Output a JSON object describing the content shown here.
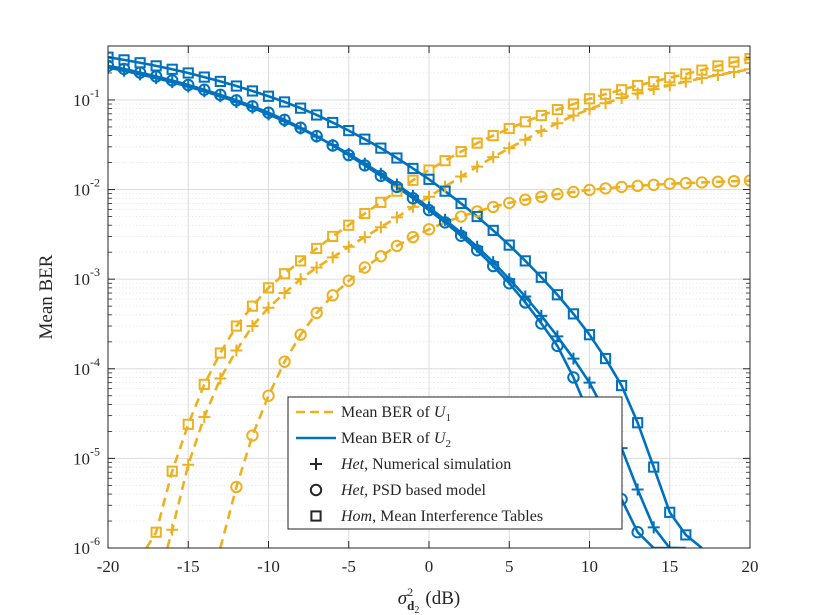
{
  "chart_data": {
    "type": "line",
    "xlabel": {
      "symbol": "σ",
      "superscript": "2",
      "subscript_main": "d",
      "subscript_sub": "2",
      "unit": "(dB)"
    },
    "ylabel": "Mean BER",
    "xlim": [
      -20,
      20
    ],
    "ylim": [
      1e-06,
      0.4
    ],
    "yscale": "log",
    "grid": true,
    "minor_grid": true,
    "legend_position": "bottom-center",
    "x_ticks": [
      -20,
      -15,
      -10,
      -5,
      0,
      5,
      10,
      15,
      20
    ],
    "x_tick_labels": [
      "-20",
      "-15",
      "-10",
      "-5",
      "0",
      "5",
      "10",
      "15",
      "20"
    ],
    "y_ticks": [
      {
        "value": 1e-06,
        "base": "10",
        "exp": "-6"
      },
      {
        "value": 1e-05,
        "base": "10",
        "exp": "-5"
      },
      {
        "value": 0.0001,
        "base": "10",
        "exp": "-4"
      },
      {
        "value": 0.001,
        "base": "10",
        "exp": "-3"
      },
      {
        "value": 0.01,
        "base": "10",
        "exp": "-2"
      },
      {
        "value": 0.1,
        "base": "10",
        "exp": "-1"
      }
    ],
    "colors": {
      "user1": "#EDB120",
      "user2": "#0072BD",
      "axis": "#262626",
      "grid": "#dcdcdc"
    },
    "legend": [
      {
        "kind": "line-dashed",
        "text": "Mean BER of ",
        "math": "U",
        "sub": "1"
      },
      {
        "kind": "line-solid",
        "text": "Mean BER of ",
        "math": "U",
        "sub": "2"
      },
      {
        "kind": "marker-plus",
        "italic": "Het",
        "text": ", Numerical simulation"
      },
      {
        "kind": "marker-circle",
        "italic": "Het",
        "text": ", PSD based model"
      },
      {
        "kind": "marker-square",
        "italic": "Hom",
        "text": ", Mean Interference Tables"
      }
    ],
    "series": [
      {
        "name": "U1 Het PSD based model",
        "user": "user1",
        "line": "dashed",
        "marker": "circle",
        "x": [
          -13,
          -12,
          -11,
          -10,
          -9,
          -8,
          -7,
          -6,
          -5,
          -4,
          -3,
          -2,
          -1,
          0,
          1,
          2,
          3,
          4,
          5,
          6,
          7,
          8,
          9,
          10,
          11,
          12,
          13,
          14,
          15,
          16,
          17,
          18,
          19,
          20
        ],
        "values": [
          1e-06,
          4.8e-06,
          1.8e-05,
          5e-05,
          0.00012,
          0.00024,
          0.00042,
          0.00066,
          0.00096,
          0.00135,
          0.0018,
          0.00235,
          0.00295,
          0.0036,
          0.0043,
          0.005,
          0.0057,
          0.0064,
          0.0071,
          0.0077,
          0.0083,
          0.0089,
          0.0094,
          0.0099,
          0.0103,
          0.0107,
          0.011,
          0.0113,
          0.0116,
          0.0118,
          0.012,
          0.0122,
          0.0124,
          0.0126
        ]
      },
      {
        "name": "U1 Het Numerical simulation",
        "user": "user1",
        "line": "dashed",
        "marker": "plus",
        "x": [
          -16.3,
          -16,
          -15,
          -14,
          -13,
          -12,
          -11,
          -10,
          -9,
          -8,
          -7,
          -6,
          -5,
          -4,
          -3,
          -2,
          -1,
          0,
          1,
          2,
          3,
          4,
          5,
          6,
          7,
          8,
          9,
          10,
          11,
          12,
          13,
          14,
          15,
          16,
          17,
          18,
          19,
          20
        ],
        "values": [
          1e-06,
          1.6e-06,
          8.5e-06,
          2.9e-05,
          7.8e-05,
          0.00016,
          0.0003,
          0.00048,
          0.0007,
          0.001,
          0.00135,
          0.00175,
          0.0023,
          0.00295,
          0.0038,
          0.0049,
          0.0064,
          0.0083,
          0.0108,
          0.014,
          0.018,
          0.023,
          0.029,
          0.036,
          0.045,
          0.055,
          0.067,
          0.079,
          0.092,
          0.105,
          0.118,
          0.132,
          0.146,
          0.16,
          0.175,
          0.19,
          0.205,
          0.22
        ]
      },
      {
        "name": "U1 Hom Mean Interference Tables",
        "user": "user1",
        "line": "dashed",
        "marker": "square",
        "x": [
          -17.6,
          -17,
          -16,
          -15,
          -14,
          -13,
          -12,
          -11,
          -10,
          -9,
          -8,
          -7,
          -6,
          -5,
          -4,
          -3,
          -2,
          -1,
          0,
          1,
          2,
          3,
          4,
          5,
          6,
          7,
          8,
          9,
          10,
          11,
          12,
          13,
          14,
          15,
          16,
          17,
          18,
          19,
          20
        ],
        "values": [
          1e-06,
          1.5e-06,
          7.2e-06,
          2.4e-05,
          6.7e-05,
          0.00015,
          0.0003,
          0.0005,
          0.0008,
          0.00115,
          0.0016,
          0.0022,
          0.003,
          0.004,
          0.0054,
          0.0072,
          0.0096,
          0.0127,
          0.0165,
          0.021,
          0.0265,
          0.033,
          0.04,
          0.048,
          0.057,
          0.067,
          0.078,
          0.09,
          0.103,
          0.116,
          0.13,
          0.145,
          0.16,
          0.177,
          0.195,
          0.215,
          0.24,
          0.265,
          0.29
        ]
      },
      {
        "name": "U2 Het PSD based model",
        "user": "user2",
        "line": "solid",
        "marker": "circle",
        "x": [
          -20,
          -19,
          -18,
          -17,
          -16,
          -15,
          -14,
          -13,
          -12,
          -11,
          -10,
          -9,
          -8,
          -7,
          -6,
          -5,
          -4,
          -3,
          -2,
          -1,
          0,
          1,
          2,
          3,
          4,
          5,
          6,
          7,
          8,
          9,
          10,
          11,
          12,
          13,
          14,
          15,
          15.5
        ],
        "values": [
          0.24,
          0.222,
          0.202,
          0.183,
          0.165,
          0.147,
          0.13,
          0.114,
          0.099,
          0.085,
          0.072,
          0.06,
          0.049,
          0.0395,
          0.031,
          0.0242,
          0.0186,
          0.0142,
          0.0107,
          0.008,
          0.0059,
          0.0043,
          0.00305,
          0.0021,
          0.0014,
          0.0009,
          0.00055,
          0.00032,
          0.00018,
          8e-05,
          3e-05,
          1e-05,
          3.5e-06,
          1.5e-06,
          1e-06,
          1e-06,
          1e-06
        ]
      },
      {
        "name": "U2 Het Numerical simulation",
        "user": "user2",
        "line": "solid",
        "marker": "plus",
        "x": [
          -20,
          -19,
          -18,
          -17,
          -16,
          -15,
          -14,
          -13,
          -12,
          -11,
          -10,
          -9,
          -8,
          -7,
          -6,
          -5,
          -4,
          -3,
          -2,
          -1,
          0,
          1,
          2,
          3,
          4,
          5,
          6,
          7,
          8,
          9,
          10,
          11,
          12,
          13,
          14,
          15,
          16
        ],
        "values": [
          0.23,
          0.212,
          0.193,
          0.175,
          0.158,
          0.141,
          0.125,
          0.11,
          0.095,
          0.082,
          0.069,
          0.058,
          0.048,
          0.039,
          0.0315,
          0.025,
          0.0195,
          0.015,
          0.0114,
          0.0085,
          0.0063,
          0.0046,
          0.0033,
          0.0023,
          0.00155,
          0.001,
          0.00064,
          0.00039,
          0.00023,
          0.00013,
          7e-05,
          3.2e-05,
          1.3e-05,
          4.5e-06,
          1.7e-06,
          1e-06,
          1e-06
        ]
      },
      {
        "name": "U2 Hom Mean Interference Tables",
        "user": "user2",
        "line": "solid",
        "marker": "square",
        "x": [
          -20,
          -19,
          -18,
          -17,
          -16,
          -15,
          -14,
          -13,
          -12,
          -11,
          -10,
          -9,
          -8,
          -7,
          -6,
          -5,
          -4,
          -3,
          -2,
          -1,
          0,
          1,
          2,
          3,
          4,
          5,
          6,
          7,
          8,
          9,
          10,
          11,
          12,
          13,
          14,
          15,
          16,
          17
        ],
        "values": [
          0.3,
          0.28,
          0.26,
          0.24,
          0.22,
          0.2,
          0.18,
          0.161,
          0.143,
          0.126,
          0.11,
          0.095,
          0.081,
          0.068,
          0.056,
          0.0455,
          0.0365,
          0.029,
          0.0225,
          0.0172,
          0.013,
          0.0096,
          0.007,
          0.005,
          0.0035,
          0.0024,
          0.0016,
          0.00105,
          0.00067,
          0.00041,
          0.00024,
          0.00013,
          6.5e-05,
          2.5e-05,
          8e-06,
          2.5e-06,
          1.4e-06,
          1e-06
        ]
      }
    ]
  }
}
